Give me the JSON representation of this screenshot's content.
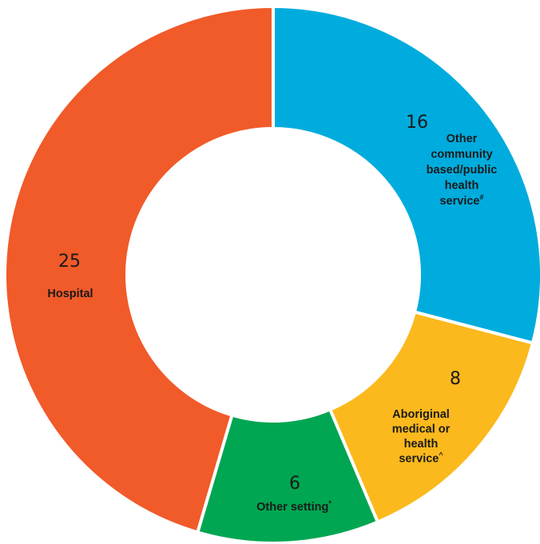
{
  "chart_data": {
    "type": "pie",
    "variant": "donut",
    "title": "",
    "slices": [
      {
        "label_lines": [
          "Other",
          "community",
          "based/public",
          "health",
          "service"
        ],
        "marker": "#",
        "value": 16,
        "color": "#00ACDD"
      },
      {
        "label_lines": [
          "Aboriginal",
          "medical or",
          "health",
          "service"
        ],
        "marker": "^",
        "value": 8,
        "color": "#FBB91D"
      },
      {
        "label_lines": [
          "Other setting"
        ],
        "marker": "*",
        "value": 6,
        "color": "#00A651"
      },
      {
        "label_lines": [
          "Hospital"
        ],
        "marker": "",
        "value": 25,
        "color": "#F15A29"
      }
    ],
    "legend": "none"
  }
}
